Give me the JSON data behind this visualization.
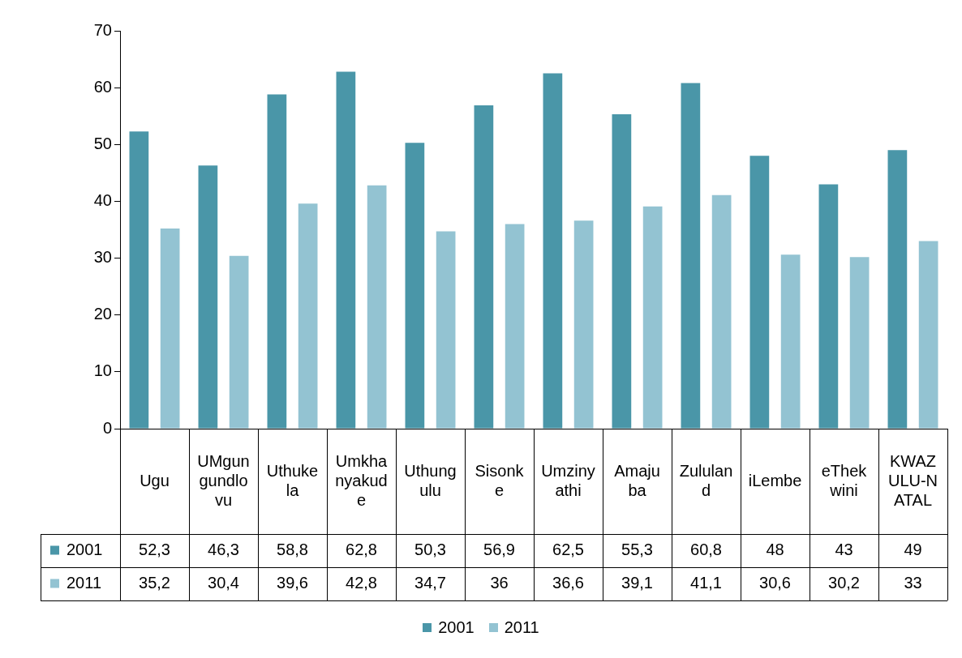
{
  "chart_data": {
    "type": "bar",
    "categories": [
      "Ugu",
      "UMgungundlovu",
      "Uthukela",
      "Umkhanyakude",
      "Uthungulu",
      "Sisonke",
      "Umzinyathi",
      "Amajuba",
      "Zululand",
      "iLembe",
      "eThekwini",
      "KWAZULU-NATAL"
    ],
    "series": [
      {
        "name": "2001",
        "color": "#4a96a8",
        "values": [
          52.3,
          46.3,
          58.8,
          62.8,
          50.3,
          56.9,
          62.5,
          55.3,
          60.8,
          48,
          43,
          49
        ],
        "value_labels": [
          "52,3",
          "46,3",
          "58,8",
          "62,8",
          "50,3",
          "56,9",
          "62,5",
          "55,3",
          "60,8",
          "48",
          "43",
          "49"
        ]
      },
      {
        "name": "2011",
        "color": "#93c3d2",
        "values": [
          35.2,
          30.4,
          39.6,
          42.8,
          34.7,
          36,
          36.6,
          39.1,
          41.1,
          30.6,
          30.2,
          33
        ],
        "value_labels": [
          "35,2",
          "30,4",
          "39,6",
          "42,8",
          "34,7",
          "36",
          "36,6",
          "39,1",
          "41,1",
          "30,6",
          "30,2",
          "33"
        ]
      }
    ],
    "ylim": [
      0,
      70
    ],
    "yticks": [
      0,
      10,
      20,
      30,
      40,
      50,
      60,
      70
    ],
    "grid": false,
    "legend": "bottom"
  }
}
